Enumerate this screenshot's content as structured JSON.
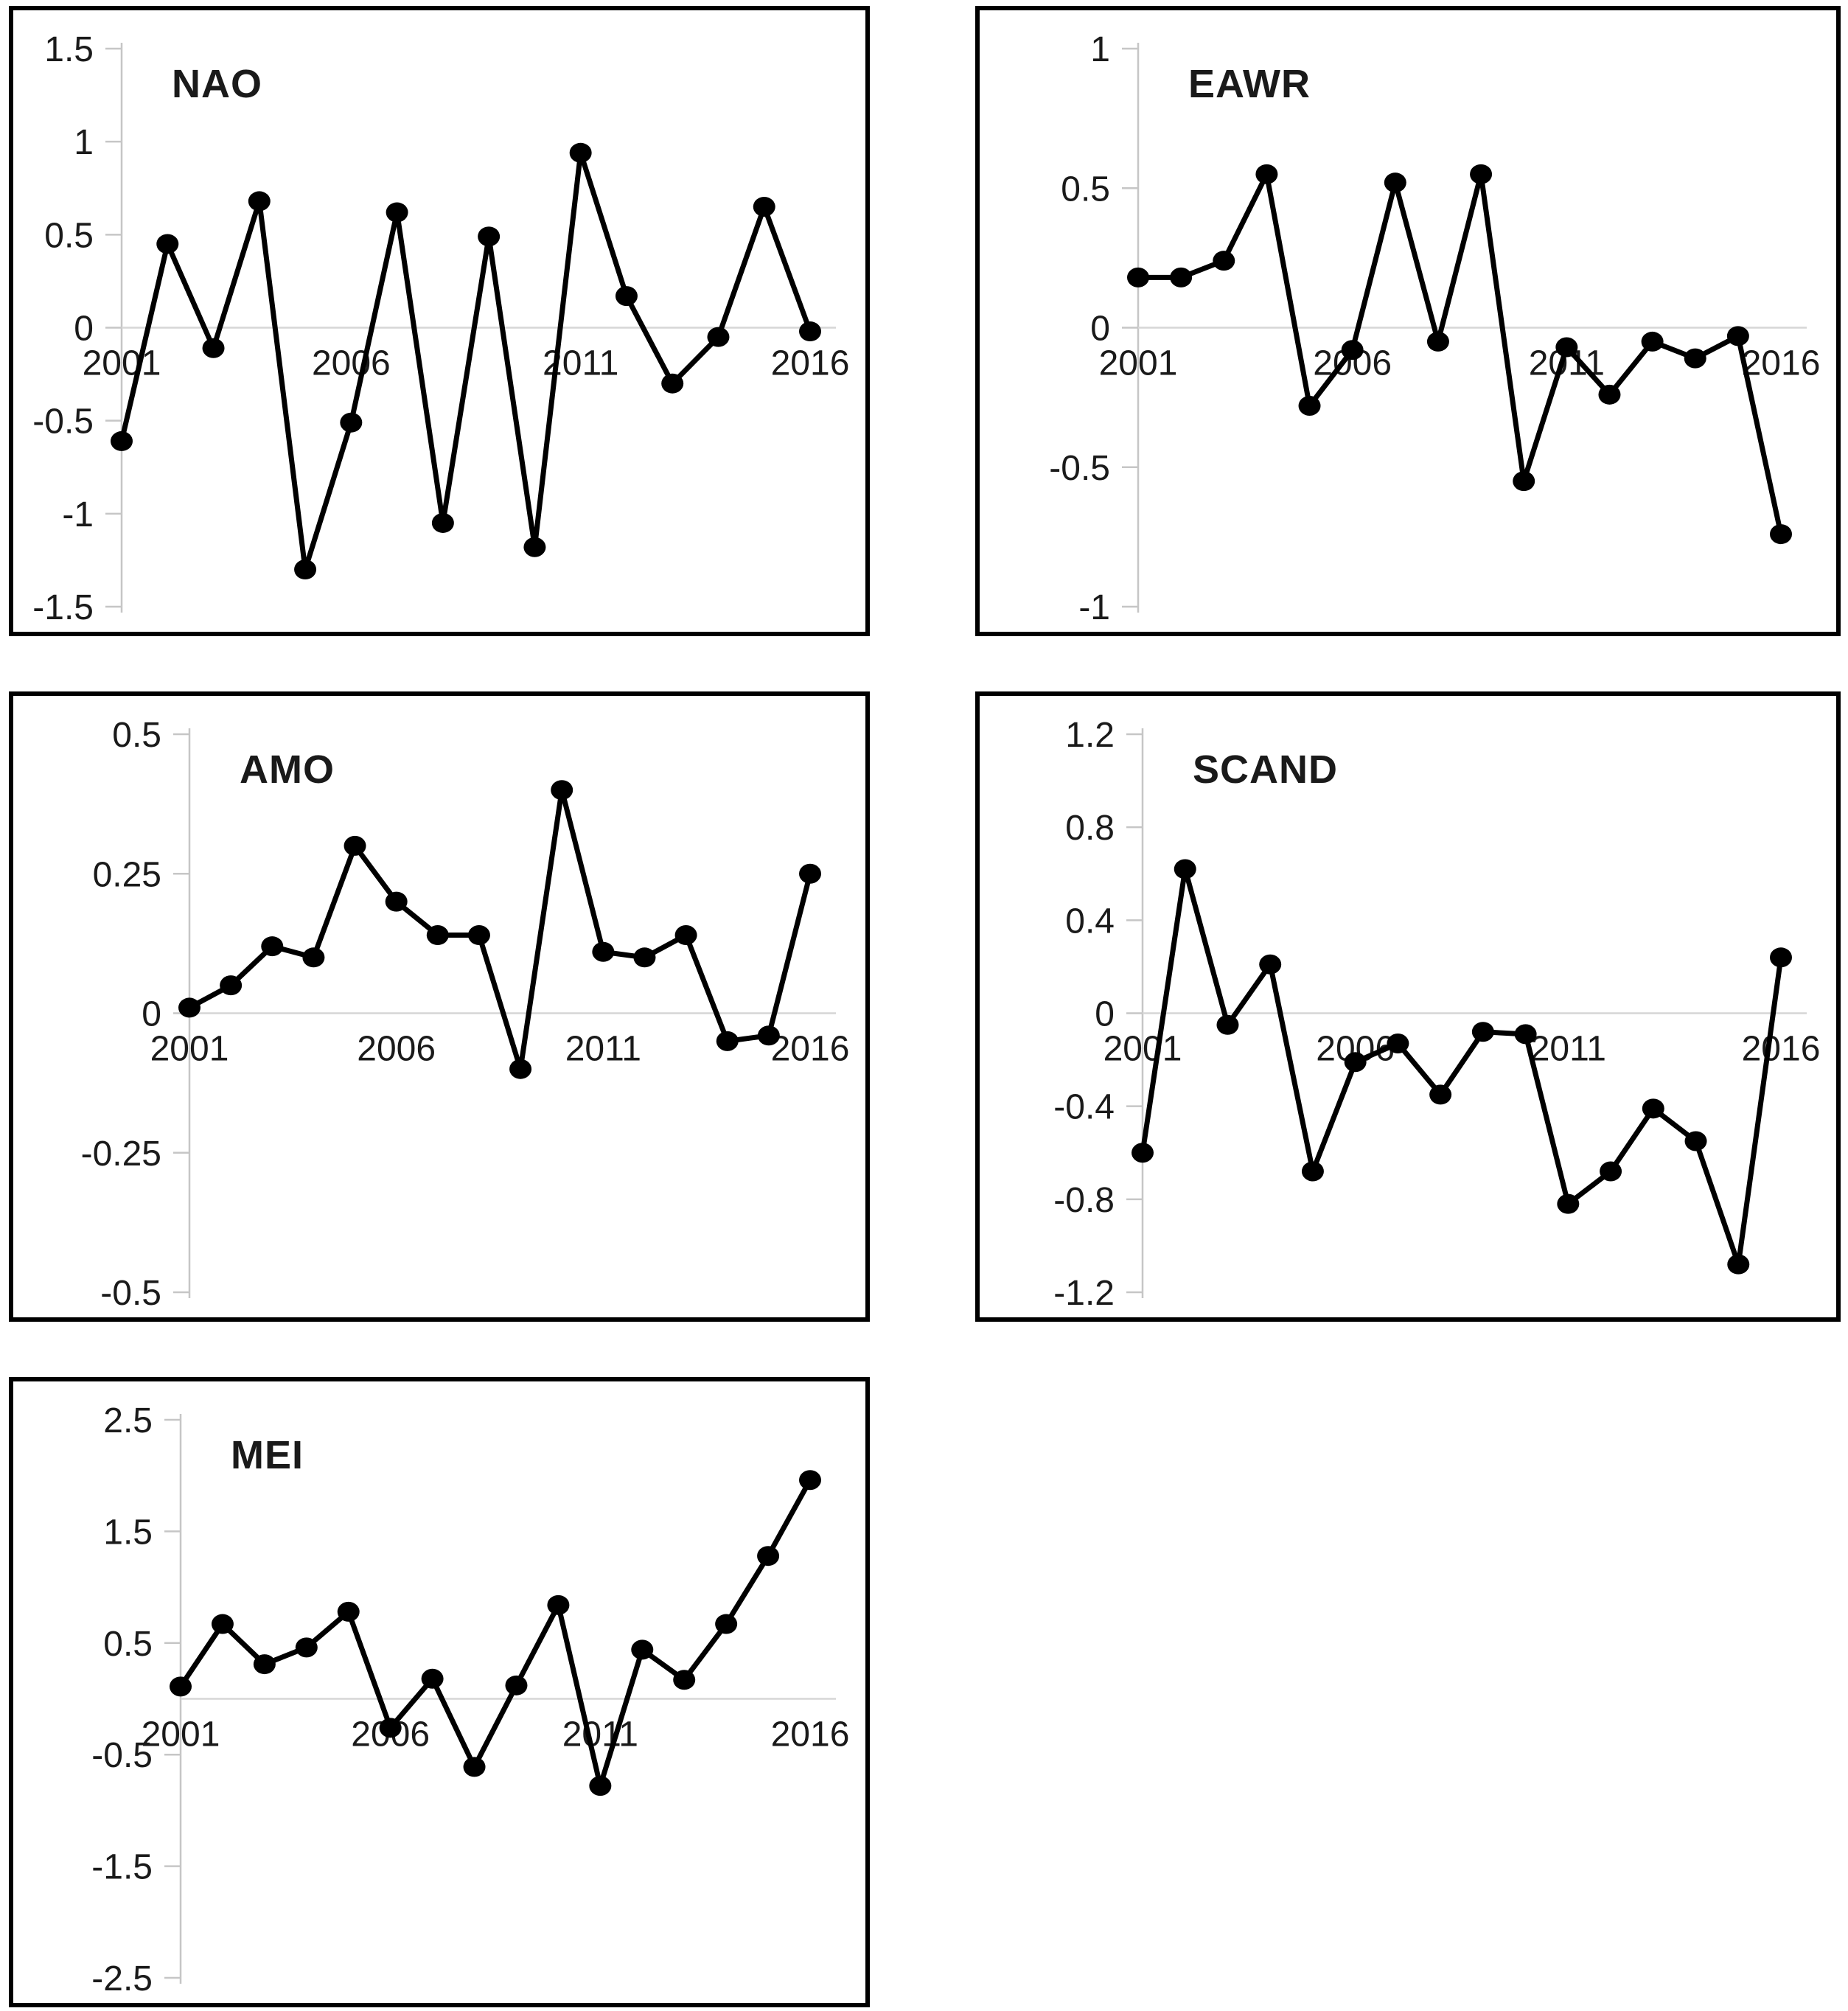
{
  "figure": {
    "description": "Five line charts of annual climate teleconnection indices, 2001-2016",
    "background_color": "#ffffff",
    "line_color": "#000000",
    "marker": "filled-circle",
    "gridline_color": "#d6d6d6",
    "axis_color": "#c6c6c6"
  },
  "chart_data": [
    {
      "id": "nao",
      "type": "line",
      "title": "NAO",
      "x": [
        2001,
        2002,
        2003,
        2004,
        2005,
        2006,
        2007,
        2008,
        2009,
        2010,
        2011,
        2012,
        2013,
        2014,
        2015,
        2016
      ],
      "values": [
        -0.61,
        0.45,
        -0.11,
        0.68,
        -1.3,
        -0.51,
        0.62,
        -1.05,
        0.49,
        -1.18,
        0.94,
        0.17,
        -0.3,
        -0.05,
        0.65,
        -0.02
      ],
      "ylim": [
        -1.5,
        1.5
      ],
      "yticks": [
        1.5,
        1,
        0.5,
        0,
        -0.5,
        -1,
        -1.5
      ],
      "ytick_labels": [
        "1.5",
        "1",
        "0.5",
        "0",
        "-0.5",
        "-1",
        "-1.5"
      ],
      "x_tick_years": [
        2001,
        2006,
        2011,
        2016
      ],
      "grid": "zero-line-only",
      "legend": "none"
    },
    {
      "id": "eawr",
      "type": "line",
      "title": "EAWR",
      "x": [
        2001,
        2002,
        2003,
        2004,
        2005,
        2006,
        2007,
        2008,
        2009,
        2010,
        2011,
        2012,
        2013,
        2014,
        2015,
        2016
      ],
      "values": [
        0.18,
        0.18,
        0.24,
        0.55,
        -0.28,
        -0.08,
        0.52,
        -0.05,
        0.55,
        -0.55,
        -0.07,
        -0.24,
        -0.05,
        -0.11,
        -0.03,
        -0.74
      ],
      "ylim": [
        -1,
        1
      ],
      "yticks": [
        1,
        0.5,
        0,
        -0.5,
        -1
      ],
      "ytick_labels": [
        "1",
        "0.5",
        "0",
        "-0.5",
        "-1"
      ],
      "x_tick_years": [
        2001,
        2006,
        2011,
        2016
      ],
      "grid": "zero-line-only",
      "legend": "none"
    },
    {
      "id": "amo",
      "type": "line",
      "title": "AMO",
      "x": [
        2001,
        2002,
        2003,
        2004,
        2005,
        2006,
        2007,
        2008,
        2009,
        2010,
        2011,
        2012,
        2013,
        2014,
        2015,
        2016
      ],
      "values": [
        0.01,
        0.05,
        0.12,
        0.1,
        0.3,
        0.2,
        0.14,
        0.14,
        -0.1,
        0.4,
        0.11,
        0.1,
        0.14,
        -0.05,
        -0.04,
        0.25
      ],
      "ylim": [
        -0.5,
        0.5
      ],
      "yticks": [
        0.5,
        0.25,
        0,
        -0.25,
        -0.5
      ],
      "ytick_labels": [
        "0.5",
        "0.25",
        "0",
        "-0.25",
        "-0.5"
      ],
      "x_tick_years": [
        2001,
        2006,
        2011,
        2016
      ],
      "grid": "zero-line-only",
      "legend": "none"
    },
    {
      "id": "scand",
      "type": "line",
      "title": "SCAND",
      "x": [
        2001,
        2002,
        2003,
        2004,
        2005,
        2006,
        2007,
        2008,
        2009,
        2010,
        2011,
        2012,
        2013,
        2014,
        2015,
        2016
      ],
      "values": [
        -0.6,
        0.62,
        -0.05,
        0.21,
        -0.68,
        -0.21,
        -0.13,
        -0.35,
        -0.08,
        -0.09,
        -0.82,
        -0.68,
        -0.41,
        -0.55,
        -1.08,
        0.24
      ],
      "ylim": [
        -1.2,
        1.2
      ],
      "yticks": [
        1.2,
        0.8,
        0.4,
        0,
        -0.4,
        -0.8,
        -1.2
      ],
      "ytick_labels": [
        "1.2",
        "0.8",
        "0.4",
        "0",
        "-0.4",
        "-0.8",
        "-1.2"
      ],
      "x_tick_years": [
        2001,
        2006,
        2011,
        2016
      ],
      "grid": "zero-line-only",
      "legend": "none"
    },
    {
      "id": "mei",
      "type": "line",
      "title": "MEI",
      "x": [
        2001,
        2002,
        2003,
        2004,
        2005,
        2006,
        2007,
        2008,
        2009,
        2010,
        2011,
        2012,
        2013,
        2014,
        2015,
        2016
      ],
      "values": [
        0.11,
        0.67,
        0.31,
        0.46,
        0.78,
        -0.26,
        0.18,
        -0.61,
        0.12,
        0.84,
        -0.78,
        0.44,
        0.17,
        0.67,
        1.28,
        1.96
      ],
      "ylim": [
        -2.5,
        2.5
      ],
      "yticks": [
        2.5,
        1.5,
        0.5,
        -0.5,
        -1.5,
        -2.5
      ],
      "ytick_labels": [
        "2.5",
        "1.5",
        "0.5",
        "-0.5",
        "-1.5",
        "-2.5"
      ],
      "x_tick_years": [
        2001,
        2006,
        2011,
        2016
      ],
      "grid": "zero-line-only",
      "legend": "none"
    }
  ]
}
